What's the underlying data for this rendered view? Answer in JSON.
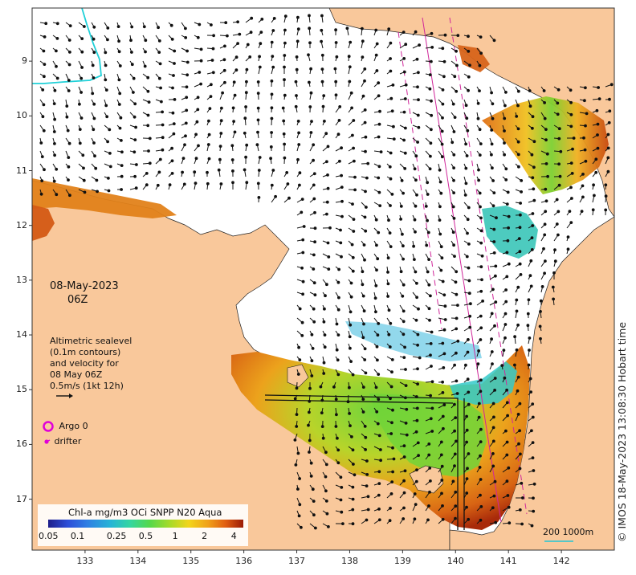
{
  "map": {
    "date_line1": "08-May-2023",
    "date_line2": "06Z",
    "sealevel_lines": [
      "Altimetric sealevel",
      "(0.1m contours)",
      "and velocity for",
      "08 May 06Z",
      "0.5m/s (1kt 12h)"
    ],
    "argo_label": "Argo 0",
    "drifter_label": "drifter",
    "credit": "© IMOS 18-May-2023 13:08:30 Hobart time",
    "scale_label": "200  1000m"
  },
  "axes": {
    "y_ticks": [
      "9",
      "10",
      "11",
      "12",
      "13",
      "14",
      "15",
      "16",
      "17"
    ],
    "y_values": [
      -9,
      -10,
      -11,
      -12,
      -13,
      -14,
      -15,
      -16,
      -17
    ],
    "y_range": [
      -8.03,
      -17.93
    ],
    "x_ticks": [
      "133",
      "134",
      "135",
      "136",
      "137",
      "138",
      "139",
      "140",
      "141",
      "142"
    ],
    "x_values": [
      133,
      134,
      135,
      136,
      137,
      138,
      139,
      140,
      141,
      142
    ],
    "x_range": [
      132.0,
      143.0
    ]
  },
  "colorbar": {
    "title": "Chl-a mg/m3 OCi SNPP N20 Aqua",
    "labels": [
      "0.05",
      "0.1",
      "0.25",
      "0.5",
      "1",
      "2",
      "4"
    ],
    "values": [
      0.05,
      0.1,
      0.25,
      0.5,
      1,
      2,
      4
    ],
    "range": [
      0.05,
      5
    ]
  },
  "colors": {
    "land": "#f9c89b",
    "sea": "#ffffff",
    "coast": "#222222",
    "arrow": "#111111",
    "track": "#d0279a",
    "contour": "#28c8d8",
    "argo": "#e000d8"
  }
}
